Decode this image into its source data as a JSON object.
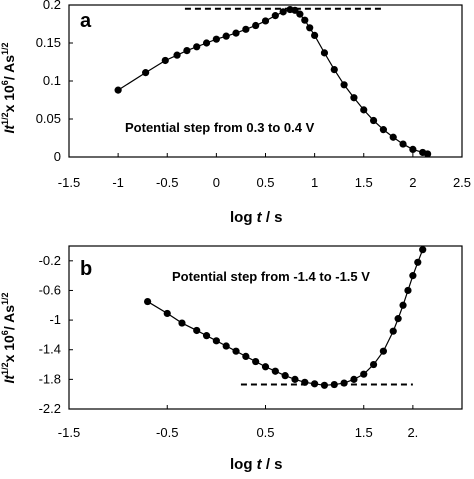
{
  "chart_data": [
    {
      "panel_label": "a",
      "type": "scatter",
      "annotation": "Potential step from 0.3 to 0.4 V",
      "xlabel": "log t / s",
      "ylabel_left_fragment": "It",
      "ylabel_mid": "x 10",
      "ylabel_unit": "/ As",
      "xlim": [
        -1.5,
        2.5
      ],
      "ylim": [
        0,
        0.2
      ],
      "xticks": [
        "-1.5",
        "-1",
        "-0.5",
        "0",
        "0.5",
        "1",
        "1.5",
        "2",
        "2.5"
      ],
      "yticks": [
        "0",
        "0.05",
        "0.1",
        "0.15",
        "0.2"
      ],
      "grid": false,
      "reference_line": {
        "y": 0.195,
        "x_from": -0.32,
        "x_to": 1.68,
        "style": "dashed"
      },
      "series": [
        {
          "x": [
            -1.0,
            -0.72,
            -0.52,
            -0.4,
            -0.3,
            -0.2,
            -0.1,
            0.0,
            0.1,
            0.2,
            0.3,
            0.4,
            0.5,
            0.6,
            0.68,
            0.75,
            0.8,
            0.85,
            0.9,
            0.95,
            1.0,
            1.1,
            1.2,
            1.3,
            1.4,
            1.5,
            1.6,
            1.7,
            1.8,
            1.9,
            2.0,
            2.1,
            2.15
          ],
          "y": [
            0.088,
            0.111,
            0.127,
            0.134,
            0.14,
            0.145,
            0.15,
            0.155,
            0.159,
            0.163,
            0.168,
            0.173,
            0.179,
            0.186,
            0.191,
            0.194,
            0.193,
            0.188,
            0.18,
            0.17,
            0.16,
            0.137,
            0.115,
            0.095,
            0.078,
            0.062,
            0.048,
            0.036,
            0.026,
            0.017,
            0.01,
            0.006,
            0.004
          ]
        }
      ]
    },
    {
      "panel_label": "b",
      "type": "scatter",
      "annotation": "Potential step from -1.4 to -1.5 V",
      "xlabel": "log t / s",
      "ylabel_left_fragment": "It",
      "ylabel_mid": "x 10",
      "ylabel_unit": "/ As",
      "xlim": [
        -1.5,
        2.5
      ],
      "ylim": [
        -2.2,
        0
      ],
      "xticks": [
        "-1.5",
        "-0.5",
        "0.5",
        "1.5",
        "2."
      ],
      "yticks": [
        "-0.2",
        "-0.6",
        "-1",
        "-1.4",
        "-1.8",
        "-2.2"
      ],
      "grid": false,
      "reference_line": {
        "y": -1.87,
        "x_from": 0.25,
        "x_to": 2.0,
        "style": "dashed"
      },
      "series": [
        {
          "x": [
            -0.7,
            -0.5,
            -0.35,
            -0.2,
            -0.1,
            0.0,
            0.1,
            0.2,
            0.3,
            0.4,
            0.5,
            0.6,
            0.7,
            0.8,
            0.9,
            1.0,
            1.1,
            1.2,
            1.3,
            1.4,
            1.5,
            1.6,
            1.7,
            1.8,
            1.85,
            1.9,
            1.95,
            2.0,
            2.05,
            2.1
          ],
          "y": [
            -0.75,
            -0.91,
            -1.04,
            -1.14,
            -1.21,
            -1.28,
            -1.35,
            -1.42,
            -1.49,
            -1.56,
            -1.63,
            -1.69,
            -1.75,
            -1.8,
            -1.84,
            -1.86,
            -1.88,
            -1.87,
            -1.85,
            -1.8,
            -1.73,
            -1.6,
            -1.42,
            -1.15,
            -0.98,
            -0.8,
            -0.6,
            -0.4,
            -0.22,
            -0.05
          ]
        }
      ]
    }
  ]
}
